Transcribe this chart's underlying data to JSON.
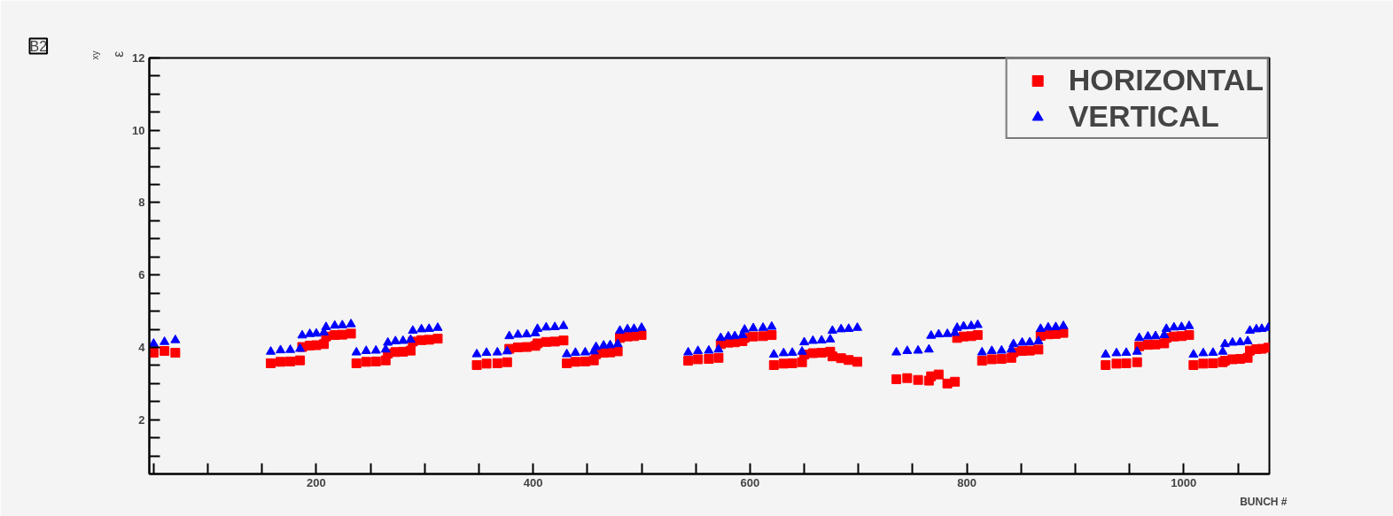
{
  "chart_data": {
    "type": "scatter",
    "xlabel": "BUNCH #",
    "ylabel": "ε$_{xy}$",
    "annotations": [
      "B2"
    ],
    "xlim": [
      46,
      1079
    ],
    "ylim": [
      0.5,
      12
    ],
    "xticks": [
      {
        "value": 50,
        "label": null
      },
      {
        "value": 100,
        "label": null
      },
      {
        "value": 150,
        "label": null
      },
      200,
      {
        "value": 250,
        "label": null
      },
      {
        "value": 300,
        "label": null
      },
      {
        "value": 350,
        "label": null
      },
      400,
      {
        "value": 450,
        "label": null
      },
      {
        "value": 500,
        "label": null
      },
      {
        "value": 550,
        "label": null
      },
      600,
      {
        "value": 650,
        "label": null
      },
      {
        "value": 700,
        "label": null
      },
      {
        "value": 750,
        "label": null
      },
      800,
      {
        "value": 850,
        "label": null
      },
      {
        "value": 900,
        "label": null
      },
      {
        "value": 950,
        "label": null
      },
      1000,
      {
        "value": 1050,
        "label": null
      }
    ],
    "yticks": [
      {
        "value": 1,
        "label": null
      },
      {
        "value": 1.5,
        "label": null
      },
      2,
      {
        "value": 2.5,
        "label": null
      },
      {
        "value": 3,
        "label": null
      },
      {
        "value": 3.5,
        "label": null
      },
      4,
      {
        "value": 4.5,
        "label": null
      },
      {
        "value": 5,
        "label": null
      },
      {
        "value": 5.5,
        "label": null
      },
      6,
      {
        "value": 6.5,
        "label": null
      },
      {
        "value": 7,
        "label": null
      },
      {
        "value": 7.5,
        "label": null
      },
      8,
      {
        "value": 8.5,
        "label": null
      },
      {
        "value": 9,
        "label": null
      },
      {
        "value": 9.5,
        "label": null
      },
      10,
      {
        "value": 10.5,
        "label": null
      },
      {
        "value": 11,
        "label": null
      },
      {
        "value": 11.5,
        "label": null
      },
      12
    ],
    "grid": false,
    "legend": "top right",
    "x": [
      50,
      60,
      70,
      158,
      167,
      176,
      185,
      187,
      194,
      200,
      207,
      209,
      217,
      224,
      232,
      237,
      246,
      255,
      264,
      266,
      273,
      280,
      287,
      289,
      297,
      304,
      312,
      348,
      357,
      367,
      376,
      378,
      386,
      394,
      402,
      404,
      412,
      420,
      428,
      431,
      439,
      448,
      456,
      458,
      465,
      471,
      478,
      480,
      487,
      493,
      500,
      543,
      552,
      562,
      571,
      573,
      580,
      586,
      593,
      595,
      603,
      612,
      620,
      622,
      631,
      639,
      648,
      650,
      658,
      666,
      674,
      676,
      684,
      691,
      699,
      735,
      745,
      755,
      765,
      767,
      774,
      782,
      789,
      791,
      797,
      804,
      810,
      814,
      823,
      832,
      841,
      843,
      851,
      858,
      866,
      868,
      875,
      882,
      889,
      928,
      938,
      947,
      957,
      959,
      967,
      974,
      982,
      984,
      991,
      998,
      1005,
      1009,
      1018,
      1027,
      1036,
      1038,
      1045,
      1052,
      1059,
      1061,
      1067,
      1072,
      1078
    ],
    "series": [
      {
        "name": "HORIZONTAL",
        "color": "#ff0000",
        "marker": "square",
        "values": [
          3.85,
          3.9,
          3.85,
          3.56,
          3.6,
          3.61,
          3.64,
          4.01,
          4.05,
          4.06,
          4.09,
          4.3,
          4.34,
          4.35,
          4.38,
          3.56,
          3.6,
          3.61,
          3.64,
          3.83,
          3.87,
          3.88,
          3.91,
          4.16,
          4.2,
          4.21,
          4.24,
          3.51,
          3.55,
          3.56,
          3.59,
          3.96,
          4.0,
          4.01,
          4.04,
          4.11,
          4.15,
          4.16,
          4.19,
          3.56,
          3.6,
          3.61,
          3.64,
          3.81,
          3.85,
          3.86,
          3.89,
          4.26,
          4.3,
          4.31,
          4.34,
          3.63,
          3.67,
          3.68,
          3.71,
          4.09,
          4.13,
          4.14,
          4.17,
          4.26,
          4.3,
          4.31,
          4.34,
          3.51,
          3.55,
          3.56,
          3.59,
          3.8,
          3.84,
          3.85,
          3.88,
          3.75,
          3.7,
          3.65,
          3.6,
          3.12,
          3.15,
          3.1,
          3.08,
          3.2,
          3.25,
          3.0,
          3.05,
          4.26,
          4.3,
          4.31,
          4.34,
          3.63,
          3.67,
          3.68,
          3.71,
          3.86,
          3.9,
          3.91,
          3.94,
          4.32,
          4.36,
          4.37,
          4.4,
          3.51,
          3.55,
          3.56,
          3.59,
          4.03,
          4.07,
          4.08,
          4.11,
          4.26,
          4.3,
          4.31,
          4.34,
          3.51,
          3.55,
          3.56,
          3.59,
          3.63,
          3.67,
          3.68,
          3.71,
          3.91,
          3.95,
          3.96,
          3.99
        ]
      },
      {
        "name": "VERTICAL",
        "color": "#0000ff",
        "marker": "triangle",
        "values": [
          4.1,
          4.15,
          4.2,
          3.88,
          3.92,
          3.93,
          3.96,
          4.33,
          4.37,
          4.38,
          4.41,
          4.56,
          4.6,
          4.61,
          4.64,
          3.86,
          3.9,
          3.91,
          3.94,
          4.13,
          4.17,
          4.18,
          4.21,
          4.46,
          4.5,
          4.51,
          4.54,
          3.81,
          3.85,
          3.86,
          3.89,
          4.31,
          4.35,
          4.36,
          4.39,
          4.51,
          4.55,
          4.56,
          4.59,
          3.81,
          3.85,
          3.86,
          3.89,
          4.01,
          4.05,
          4.06,
          4.09,
          4.46,
          4.5,
          4.51,
          4.54,
          3.86,
          3.9,
          3.91,
          3.94,
          4.26,
          4.3,
          4.31,
          4.34,
          4.49,
          4.53,
          4.54,
          4.57,
          3.8,
          3.84,
          3.85,
          3.88,
          4.14,
          4.18,
          4.19,
          4.22,
          4.46,
          4.5,
          4.51,
          4.54,
          3.86,
          3.9,
          3.91,
          3.94,
          4.32,
          4.36,
          4.37,
          4.4,
          4.54,
          4.58,
          4.59,
          4.62,
          3.86,
          3.9,
          3.91,
          3.94,
          4.09,
          4.13,
          4.14,
          4.17,
          4.51,
          4.55,
          4.56,
          4.59,
          3.8,
          3.84,
          3.85,
          3.88,
          4.26,
          4.3,
          4.31,
          4.34,
          4.51,
          4.55,
          4.56,
          4.59,
          3.8,
          3.84,
          3.85,
          3.88,
          4.09,
          4.13,
          4.14,
          4.17,
          4.46,
          4.5,
          4.51,
          4.54
        ]
      }
    ]
  }
}
